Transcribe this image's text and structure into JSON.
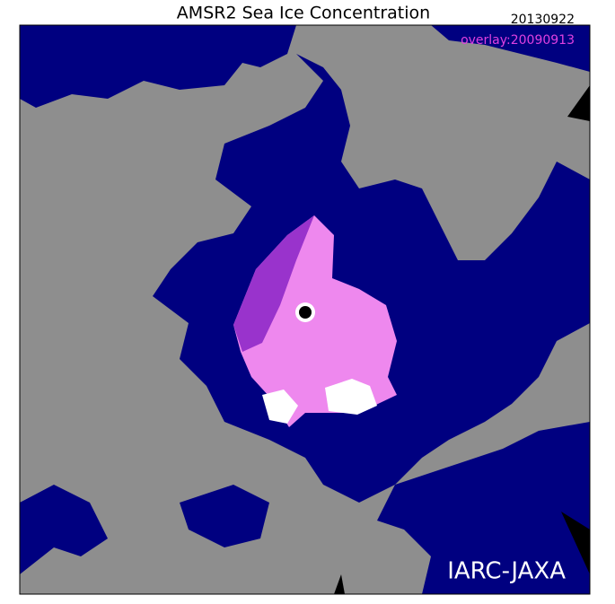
{
  "title": "AMSR2 Sea Ice Concentration",
  "date": "20130922",
  "overlay": "overlay:20090913",
  "credit": "IARC-JAXA"
}
